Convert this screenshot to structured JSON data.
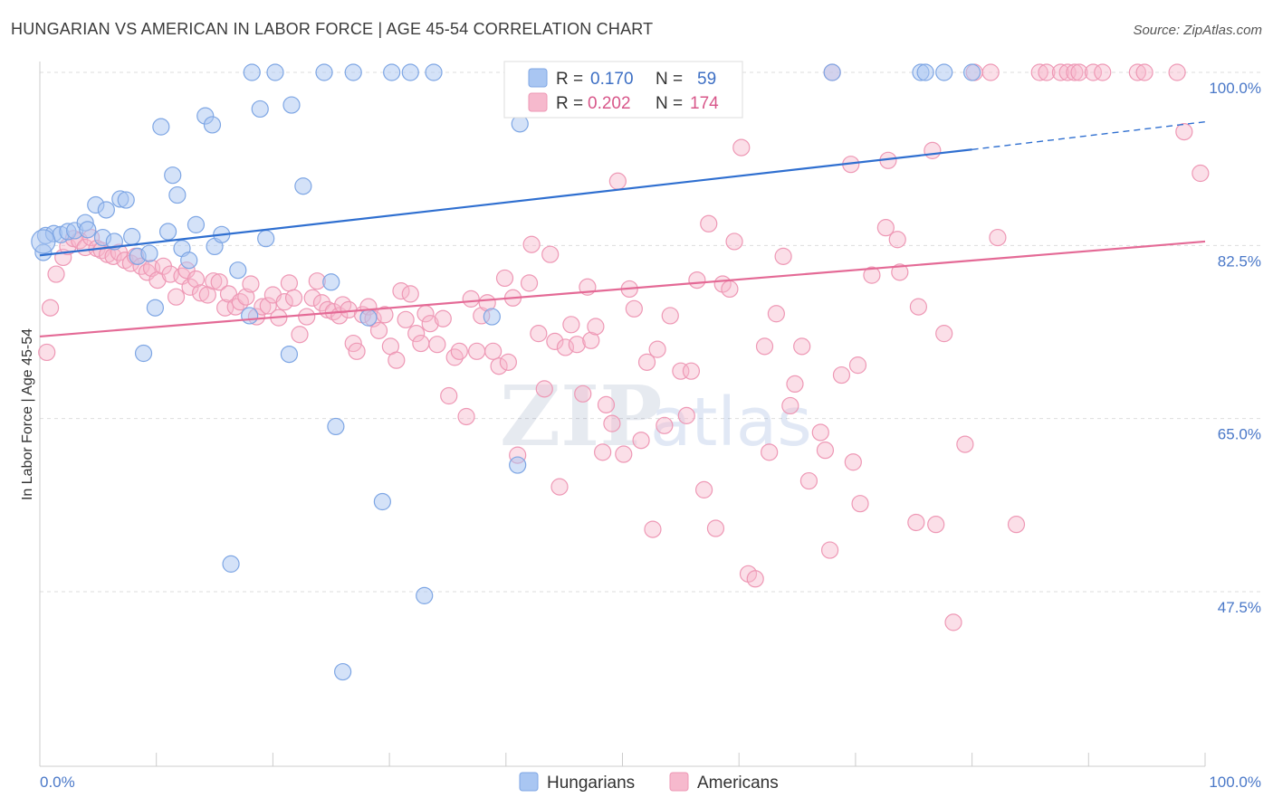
{
  "title": "HUNGARIAN VS AMERICAN IN LABOR FORCE | AGE 45-54 CORRELATION CHART",
  "source": "Source: ZipAtlas.com",
  "watermark": "ZIPatlas",
  "colors": {
    "blue_fill": "#a9c6f2",
    "blue_stroke": "#7ea6e4",
    "blue_line": "#2f6fd0",
    "pink_fill": "#f6b9cd",
    "pink_stroke": "#ee98b5",
    "pink_line": "#e46a96",
    "grid": "#dddddd",
    "tick_label": "#4a78c8"
  },
  "legend": {
    "rows": [
      {
        "r_label": "R =",
        "r_value": "0.170",
        "n_label": "N =",
        "n_value": "59"
      },
      {
        "r_label": "R =",
        "r_value": "0.202",
        "n_label": "N =",
        "n_value": "174"
      }
    ]
  },
  "chart_data": {
    "type": "scatter",
    "title": "HUNGARIAN VS AMERICAN IN LABOR FORCE | AGE 45-54 CORRELATION CHART",
    "xlabel": "",
    "ylabel": "In Labor Force | Age 45-54",
    "xlim": [
      0,
      100
    ],
    "ylim": [
      35,
      101.5
    ],
    "x_tick_labels": [
      "0.0%",
      "100.0%"
    ],
    "y_ticks": [
      47.5,
      65.0,
      82.5,
      100.0
    ],
    "y_tick_labels": [
      "47.5%",
      "65.0%",
      "82.5%",
      "100.0%"
    ],
    "grid": true,
    "legend_position": "top-center",
    "series": [
      {
        "name": "Hungarians",
        "color": "#a9c6f2",
        "r": 0.17,
        "n": 59,
        "trend": {
          "x0": 0,
          "y0": 81.5,
          "x1": 80,
          "y1": 92.2,
          "dashed_to_x": 100,
          "dashed_to_y": 95.0
        },
        "points": [
          [
            0.3,
            81.8
          ],
          [
            0.5,
            83.5
          ],
          [
            1.2,
            83.7
          ],
          [
            1.8,
            83.6
          ],
          [
            2.4,
            83.9
          ],
          [
            3.0,
            84.0
          ],
          [
            3.9,
            84.8
          ],
          [
            4.1,
            84.1
          ],
          [
            4.8,
            86.6
          ],
          [
            5.4,
            83.3
          ],
          [
            5.7,
            86.1
          ],
          [
            6.4,
            82.9
          ],
          [
            6.9,
            87.2
          ],
          [
            7.4,
            87.1
          ],
          [
            7.9,
            83.4
          ],
          [
            8.4,
            81.4
          ],
          [
            8.9,
            71.6
          ],
          [
            9.4,
            81.7
          ],
          [
            9.9,
            76.2
          ],
          [
            10.4,
            94.5
          ],
          [
            11.0,
            83.9
          ],
          [
            11.4,
            89.6
          ],
          [
            11.8,
            87.6
          ],
          [
            12.2,
            82.2
          ],
          [
            12.8,
            81.0
          ],
          [
            13.4,
            84.6
          ],
          [
            14.2,
            95.6
          ],
          [
            14.8,
            94.7
          ],
          [
            15.0,
            82.4
          ],
          [
            15.6,
            83.6
          ],
          [
            16.4,
            50.3
          ],
          [
            17.0,
            80.0
          ],
          [
            18.0,
            75.4
          ],
          [
            18.2,
            100.0
          ],
          [
            18.9,
            96.3
          ],
          [
            19.4,
            83.2
          ],
          [
            20.2,
            100.0
          ],
          [
            21.4,
            71.5
          ],
          [
            21.6,
            96.7
          ],
          [
            22.6,
            88.5
          ],
          [
            24.4,
            100.0
          ],
          [
            25.0,
            78.8
          ],
          [
            25.4,
            64.2
          ],
          [
            26.0,
            39.4
          ],
          [
            26.9,
            100.0
          ],
          [
            28.2,
            75.2
          ],
          [
            29.4,
            56.6
          ],
          [
            30.2,
            100.0
          ],
          [
            31.8,
            100.0
          ],
          [
            33.0,
            47.1
          ],
          [
            33.8,
            100.0
          ],
          [
            38.8,
            75.3
          ],
          [
            41.0,
            60.3
          ],
          [
            41.2,
            94.8
          ],
          [
            68.0,
            100.0
          ],
          [
            75.6,
            100.0
          ],
          [
            76.0,
            100.0
          ],
          [
            77.6,
            100.0
          ],
          [
            80.0,
            100.0
          ]
        ]
      },
      {
        "name": "Americans",
        "color": "#f6b9cd",
        "r": 0.202,
        "n": 174,
        "trend": {
          "x0": 0,
          "y0": 73.3,
          "x1": 100,
          "y1": 82.9
        },
        "points": [
          [
            0.6,
            71.7
          ],
          [
            0.9,
            76.2
          ],
          [
            1.4,
            79.6
          ],
          [
            2.0,
            81.3
          ],
          [
            2.4,
            82.4
          ],
          [
            2.9,
            83.2
          ],
          [
            3.4,
            83.0
          ],
          [
            3.9,
            82.3
          ],
          [
            4.4,
            83.3
          ],
          [
            4.9,
            82.2
          ],
          [
            5.3,
            82.0
          ],
          [
            5.8,
            81.6
          ],
          [
            6.3,
            81.4
          ],
          [
            6.8,
            81.8
          ],
          [
            7.3,
            81.0
          ],
          [
            7.8,
            80.7
          ],
          [
            8.2,
            81.4
          ],
          [
            8.7,
            80.4
          ],
          [
            9.2,
            79.8
          ],
          [
            9.6,
            80.2
          ],
          [
            10.1,
            79.0
          ],
          [
            10.6,
            80.4
          ],
          [
            11.2,
            79.6
          ],
          [
            11.7,
            77.3
          ],
          [
            12.2,
            79.4
          ],
          [
            12.6,
            80.0
          ],
          [
            12.9,
            78.3
          ],
          [
            13.4,
            79.1
          ],
          [
            13.8,
            77.7
          ],
          [
            14.4,
            77.5
          ],
          [
            14.9,
            78.9
          ],
          [
            15.4,
            78.8
          ],
          [
            15.9,
            76.2
          ],
          [
            16.2,
            77.6
          ],
          [
            16.8,
            76.3
          ],
          [
            17.2,
            76.8
          ],
          [
            17.7,
            77.3
          ],
          [
            18.1,
            78.6
          ],
          [
            18.6,
            75.3
          ],
          [
            19.1,
            76.3
          ],
          [
            19.6,
            76.4
          ],
          [
            20.0,
            77.5
          ],
          [
            20.5,
            75.2
          ],
          [
            21.0,
            76.8
          ],
          [
            21.4,
            78.7
          ],
          [
            21.8,
            77.2
          ],
          [
            22.3,
            73.5
          ],
          [
            22.9,
            75.3
          ],
          [
            23.4,
            77.2
          ],
          [
            23.8,
            78.9
          ],
          [
            24.2,
            76.7
          ],
          [
            24.7,
            76.0
          ],
          [
            25.2,
            75.8
          ],
          [
            25.7,
            75.4
          ],
          [
            26.0,
            76.5
          ],
          [
            26.5,
            76.0
          ],
          [
            26.9,
            72.6
          ],
          [
            27.2,
            71.8
          ],
          [
            27.7,
            75.5
          ],
          [
            28.2,
            76.3
          ],
          [
            28.6,
            75.1
          ],
          [
            29.1,
            73.9
          ],
          [
            29.6,
            75.5
          ],
          [
            30.1,
            72.3
          ],
          [
            30.6,
            70.9
          ],
          [
            31.0,
            77.9
          ],
          [
            31.4,
            75.0
          ],
          [
            31.8,
            77.6
          ],
          [
            32.3,
            73.6
          ],
          [
            32.7,
            72.6
          ],
          [
            33.1,
            75.6
          ],
          [
            33.5,
            74.6
          ],
          [
            34.1,
            72.5
          ],
          [
            34.6,
            75.1
          ],
          [
            35.1,
            67.3
          ],
          [
            35.6,
            71.2
          ],
          [
            36.0,
            71.8
          ],
          [
            36.6,
            65.2
          ],
          [
            37.0,
            77.1
          ],
          [
            37.5,
            71.8
          ],
          [
            37.9,
            75.4
          ],
          [
            38.4,
            76.7
          ],
          [
            38.9,
            71.8
          ],
          [
            39.4,
            70.3
          ],
          [
            39.9,
            79.2
          ],
          [
            40.2,
            70.7
          ],
          [
            40.6,
            77.2
          ],
          [
            41.0,
            61.3
          ],
          [
            42.0,
            78.7
          ],
          [
            42.2,
            82.6
          ],
          [
            42.8,
            73.6
          ],
          [
            43.3,
            68.0
          ],
          [
            43.8,
            81.6
          ],
          [
            44.2,
            72.8
          ],
          [
            44.6,
            58.1
          ],
          [
            45.1,
            72.2
          ],
          [
            45.6,
            74.5
          ],
          [
            46.1,
            72.5
          ],
          [
            46.6,
            67.5
          ],
          [
            47.0,
            78.3
          ],
          [
            47.3,
            72.9
          ],
          [
            47.7,
            74.3
          ],
          [
            48.3,
            61.6
          ],
          [
            48.6,
            66.4
          ],
          [
            49.1,
            64.5
          ],
          [
            49.6,
            89.0
          ],
          [
            50.1,
            61.4
          ],
          [
            50.6,
            78.1
          ],
          [
            51.0,
            76.1
          ],
          [
            51.6,
            62.8
          ],
          [
            52.1,
            70.7
          ],
          [
            52.6,
            53.8
          ],
          [
            53.0,
            72.0
          ],
          [
            53.6,
            64.3
          ],
          [
            54.1,
            75.4
          ],
          [
            55.0,
            69.8
          ],
          [
            55.5,
            65.3
          ],
          [
            55.9,
            69.8
          ],
          [
            56.4,
            79.0
          ],
          [
            57.0,
            57.8
          ],
          [
            57.4,
            84.7
          ],
          [
            58.0,
            53.9
          ],
          [
            58.6,
            78.6
          ],
          [
            59.2,
            78.1
          ],
          [
            59.6,
            82.9
          ],
          [
            60.2,
            92.4
          ],
          [
            60.8,
            49.3
          ],
          [
            61.4,
            48.8
          ],
          [
            62.2,
            72.3
          ],
          [
            62.6,
            61.6
          ],
          [
            63.2,
            75.6
          ],
          [
            63.8,
            81.4
          ],
          [
            64.4,
            66.3
          ],
          [
            64.8,
            68.5
          ],
          [
            65.4,
            72.3
          ],
          [
            66.0,
            58.7
          ],
          [
            67.0,
            63.6
          ],
          [
            67.4,
            61.8
          ],
          [
            67.8,
            51.7
          ],
          [
            68.0,
            100.0
          ],
          [
            68.8,
            69.4
          ],
          [
            69.6,
            90.7
          ],
          [
            69.8,
            60.6
          ],
          [
            70.2,
            70.4
          ],
          [
            70.4,
            56.4
          ],
          [
            71.4,
            79.5
          ],
          [
            72.6,
            84.3
          ],
          [
            72.8,
            91.1
          ],
          [
            73.6,
            83.1
          ],
          [
            73.8,
            79.8
          ],
          [
            75.4,
            76.3
          ],
          [
            75.2,
            54.5
          ],
          [
            76.6,
            92.1
          ],
          [
            76.9,
            54.3
          ],
          [
            77.6,
            73.6
          ],
          [
            78.4,
            44.4
          ],
          [
            79.4,
            62.4
          ],
          [
            80.2,
            100.0
          ],
          [
            81.6,
            100.0
          ],
          [
            82.2,
            83.3
          ],
          [
            83.8,
            54.3
          ],
          [
            85.8,
            100.0
          ],
          [
            86.4,
            100.0
          ],
          [
            87.6,
            100.0
          ],
          [
            88.2,
            100.0
          ],
          [
            88.8,
            100.0
          ],
          [
            89.2,
            100.0
          ],
          [
            90.4,
            100.0
          ],
          [
            91.2,
            100.0
          ],
          [
            94.2,
            100.0
          ],
          [
            94.8,
            100.0
          ],
          [
            97.6,
            100.0
          ],
          [
            98.2,
            94.0
          ],
          [
            99.6,
            89.8
          ]
        ]
      }
    ]
  },
  "bottom_legend": {
    "items": [
      {
        "label": "Hungarians"
      },
      {
        "label": "Americans"
      }
    ]
  }
}
